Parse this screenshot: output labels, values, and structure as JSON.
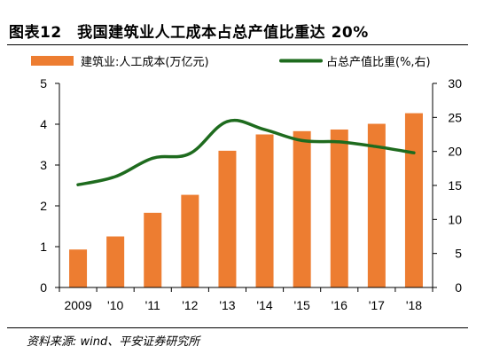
{
  "title": "图表12　我国建筑业人工成本占总产值比重达 20%",
  "source": "资料来源: wind、平安证券研究所",
  "chart_data": {
    "type": "bar",
    "categories": [
      "2009",
      "'10",
      "'11",
      "'12",
      "'13",
      "'14",
      "'15",
      "'16",
      "'17",
      "'18"
    ],
    "series": [
      {
        "name": "建筑业:人工成本(万亿元)",
        "type": "bar",
        "axis": "left",
        "color": "#ED7D31",
        "values": [
          0.93,
          1.25,
          1.83,
          2.27,
          3.35,
          3.75,
          3.83,
          3.87,
          4.01,
          4.27
        ]
      },
      {
        "name": "占总产值比重(%,右)",
        "type": "line",
        "axis": "right",
        "color": "#1E6B1E",
        "values": [
          15.1,
          16.3,
          19.0,
          19.7,
          24.4,
          23.2,
          21.6,
          21.4,
          20.7,
          19.8
        ]
      }
    ],
    "y_left": {
      "min": 0,
      "max": 5,
      "ticks": [
        0,
        1,
        2,
        3,
        4,
        5
      ]
    },
    "y_right": {
      "min": 0,
      "max": 30,
      "ticks": [
        0,
        5,
        10,
        15,
        20,
        25,
        30
      ]
    },
    "legend_position": "top"
  }
}
